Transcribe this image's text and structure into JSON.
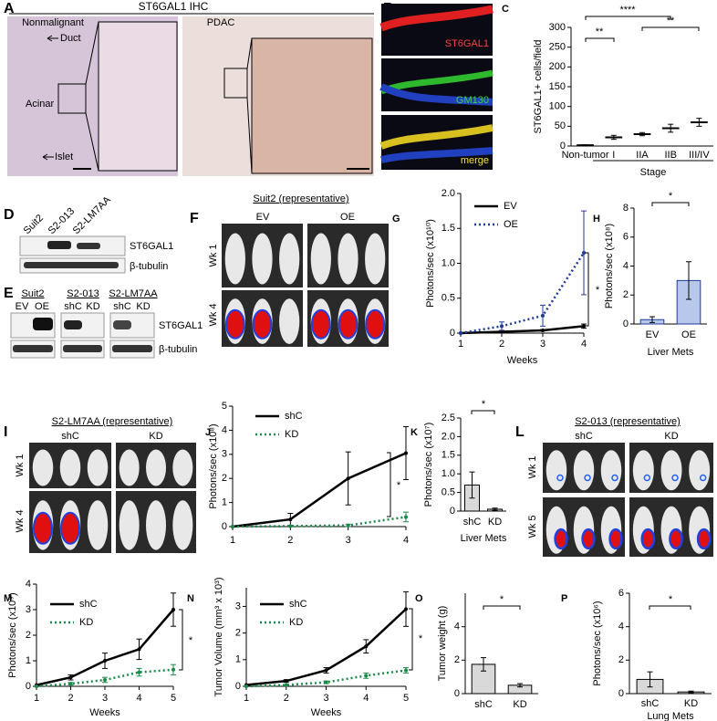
{
  "panels": {
    "A": {
      "label": "A",
      "title": "ST6GAL1 IHC",
      "left": "Nonmalignant",
      "right": "PDAC",
      "duct": "Duct",
      "acinar": "Acinar",
      "islet": "Islet"
    },
    "B": {
      "label": "B",
      "channels": [
        "ST6GAL1",
        "GM130",
        "merge"
      ]
    },
    "D": {
      "label": "D",
      "lanes": [
        "Suit2",
        "S2-013",
        "S2-LM7AA"
      ],
      "bands": [
        "ST6GAL1",
        "β-tubulin"
      ]
    },
    "E": {
      "label": "E",
      "groups": [
        "Suit2",
        "S2-013",
        "S2-LM7AA"
      ],
      "lanes": [
        "EV",
        "OE",
        "shC",
        "KD",
        "shC",
        "KD"
      ],
      "bands": [
        "ST6GAL1",
        "β-tubulin"
      ]
    },
    "F": {
      "label": "F",
      "title": "Suit2 (representative)",
      "groups": [
        "EV",
        "OE"
      ],
      "rows": [
        "Wk 1",
        "Wk 4"
      ]
    },
    "I": {
      "label": "I",
      "title": "S2-LM7AA (representative)",
      "groups": [
        "shC",
        "KD"
      ],
      "rows": [
        "Wk 1",
        "Wk 4"
      ]
    },
    "L": {
      "label": "L",
      "title": "S2-013 (representative)",
      "groups": [
        "shC",
        "KD"
      ],
      "rows": [
        "Wk 1",
        "Wk 5"
      ]
    }
  },
  "chart_data": [
    {
      "type": "dot",
      "label": "C",
      "y_label": "ST6GAL1+ cells/field",
      "x_label": "Stage",
      "categories": [
        "Non-tumor",
        "I",
        "IIA",
        "IIB",
        "III/IV"
      ],
      "values": [
        2,
        22,
        30,
        45,
        60
      ],
      "errors": [
        1,
        5,
        4,
        10,
        10
      ],
      "color": "#000000",
      "ylim": [
        0,
        300
      ],
      "yticks": [
        0,
        50,
        100,
        150,
        200,
        250,
        300
      ],
      "annotations": [
        "**",
        "****",
        "**"
      ]
    },
    {
      "type": "line",
      "label": "G",
      "y_label": "Photons/sec (x10¹⁰)",
      "x_label": "Weeks",
      "x": [
        1,
        2,
        3,
        4
      ],
      "xlim": [
        1,
        4
      ],
      "xticks": [
        1,
        2,
        3,
        4
      ],
      "ylim": [
        0,
        2
      ],
      "yticks": [
        0,
        0.5,
        {
          "value": 1,
          "label": "1.0"
        },
        1.5,
        {
          "value": 2,
          "label": "2.0"
        }
      ],
      "series": [
        {
          "name": "EV",
          "color": "#000000",
          "line_style": "solid",
          "values": [
            0,
            0.02,
            0.04,
            0.1
          ],
          "errors": [
            0,
            0,
            0.01,
            0.03
          ]
        },
        {
          "name": "OE",
          "color": "#1f3b99",
          "line_style": "dotted",
          "values": [
            0,
            0.1,
            0.25,
            1.15
          ],
          "errors": [
            0,
            0.06,
            0.15,
            0.6
          ]
        }
      ],
      "annotations": [
        "*"
      ]
    },
    {
      "type": "bar",
      "label": "H",
      "y_label": "Photons/sec (x10⁸)",
      "x_label": "Liver Mets",
      "categories": [
        "EV",
        "OE"
      ],
      "values": [
        0.3,
        3
      ],
      "errors": [
        0.2,
        1.3
      ],
      "color": "#b8c8ea",
      "edgecolor": "#1f3b99",
      "ylim": [
        0,
        8
      ],
      "yticks": [
        0,
        2,
        4,
        6,
        8
      ],
      "annotations": [
        "*"
      ]
    },
    {
      "type": "line",
      "label": "J",
      "y_label": "Photons/sec (x10⁸)",
      "x": [
        1,
        2,
        3,
        4
      ],
      "xlim": [
        1,
        4
      ],
      "xticks": [
        1,
        2,
        3,
        4
      ],
      "ylim": [
        0,
        5
      ],
      "yticks": [
        0,
        1,
        2,
        3,
        4,
        5
      ],
      "series": [
        {
          "name": "shC",
          "color": "#000000",
          "line_style": "solid",
          "values": [
            0,
            0.3,
            2,
            3.05
          ],
          "errors": [
            0,
            0.25,
            1.1,
            1.1
          ]
        },
        {
          "name": "KD",
          "color": "#1a8a4a",
          "line_style": "dotted",
          "values": [
            0,
            0.02,
            0.05,
            0.4
          ],
          "errors": [
            0,
            0,
            0.05,
            0.2
          ]
        }
      ],
      "annotations": [
        "*"
      ]
    },
    {
      "type": "bar",
      "label": "K",
      "y_label": "Photons/sec (x10⁷)",
      "x_label": "Liver Mets",
      "categories": [
        "shC",
        "KD"
      ],
      "values": [
        0.7,
        0.05
      ],
      "errors": [
        0.35,
        0.03
      ],
      "color": "#d9d9d9",
      "edgecolor": "#000000",
      "ylim": [
        0,
        2.5
      ],
      "yticks": [
        0,
        0.5,
        {
          "value": 1,
          "label": "1.0"
        },
        1.5,
        {
          "value": 2,
          "label": "2.0"
        },
        2.5
      ],
      "annotations": [
        "*"
      ]
    },
    {
      "type": "line",
      "label": "M",
      "y_label": "Photons/sec (x10⁹)",
      "x_label": "Weeks",
      "x": [
        1,
        2,
        3,
        4,
        5
      ],
      "xlim": [
        1,
        5
      ],
      "xticks": [
        1,
        2,
        3,
        4,
        5
      ],
      "ylim": [
        0,
        4
      ],
      "yticks": [
        0,
        1,
        2,
        3,
        4
      ],
      "series": [
        {
          "name": "shC",
          "color": "#000000",
          "line_style": "solid",
          "values": [
            0.05,
            0.35,
            1,
            1.45,
            3
          ],
          "errors": [
            0,
            0.1,
            0.3,
            0.4,
            0.65
          ]
        },
        {
          "name": "KD",
          "color": "#1a8a4a",
          "line_style": "dotted",
          "values": [
            0,
            0.1,
            0.25,
            0.55,
            0.65
          ],
          "errors": [
            0,
            0.05,
            0.1,
            0.15,
            0.2
          ]
        }
      ],
      "annotations": [
        "*"
      ]
    },
    {
      "type": "line",
      "label": "N",
      "y_label": "Tumor Volume (mm³ x 10³)",
      "x_label": "Weeks",
      "x": [
        1,
        2,
        3,
        4,
        5
      ],
      "xlim": [
        1,
        5
      ],
      "xticks": [
        1,
        2,
        3,
        4,
        5
      ],
      "ylim": [
        0,
        3.7
      ],
      "yticks": [
        0,
        1,
        2,
        3
      ],
      "series": [
        {
          "name": "shC",
          "color": "#000000",
          "line_style": "solid",
          "values": [
            0.05,
            0.2,
            0.6,
            1.5,
            2.9
          ],
          "errors": [
            0,
            0.05,
            0.1,
            0.25,
            0.65
          ]
        },
        {
          "name": "KD",
          "color": "#1a8a4a",
          "line_style": "dotted",
          "values": [
            0,
            0.05,
            0.15,
            0.4,
            0.6
          ],
          "errors": [
            0,
            0,
            0.05,
            0.1,
            0.1
          ]
        }
      ],
      "annotations": [
        "*"
      ]
    },
    {
      "type": "bar",
      "label": "O",
      "y_label": "Tumor weight (g)",
      "categories": [
        "shC",
        "KD"
      ],
      "values": [
        1.75,
        0.5
      ],
      "errors": [
        0.4,
        0.1
      ],
      "color": "#d9d9d9",
      "edgecolor": "#000000",
      "ylim": [
        0,
        6
      ],
      "yticks": [
        0,
        2,
        4
      ],
      "annotations": [
        "*"
      ]
    },
    {
      "type": "bar",
      "label": "P",
      "y_label": "Photons/sec (x10⁶)",
      "x_label": "Lung Mets",
      "categories": [
        "shC",
        "KD"
      ],
      "values": [
        0.85,
        0.1
      ],
      "errors": [
        0.45,
        0.05
      ],
      "color": "#d9d9d9",
      "edgecolor": "#000000",
      "ylim": [
        0,
        6
      ],
      "yticks": [
        0,
        2,
        4,
        6
      ],
      "annotations": [
        "*"
      ]
    }
  ]
}
